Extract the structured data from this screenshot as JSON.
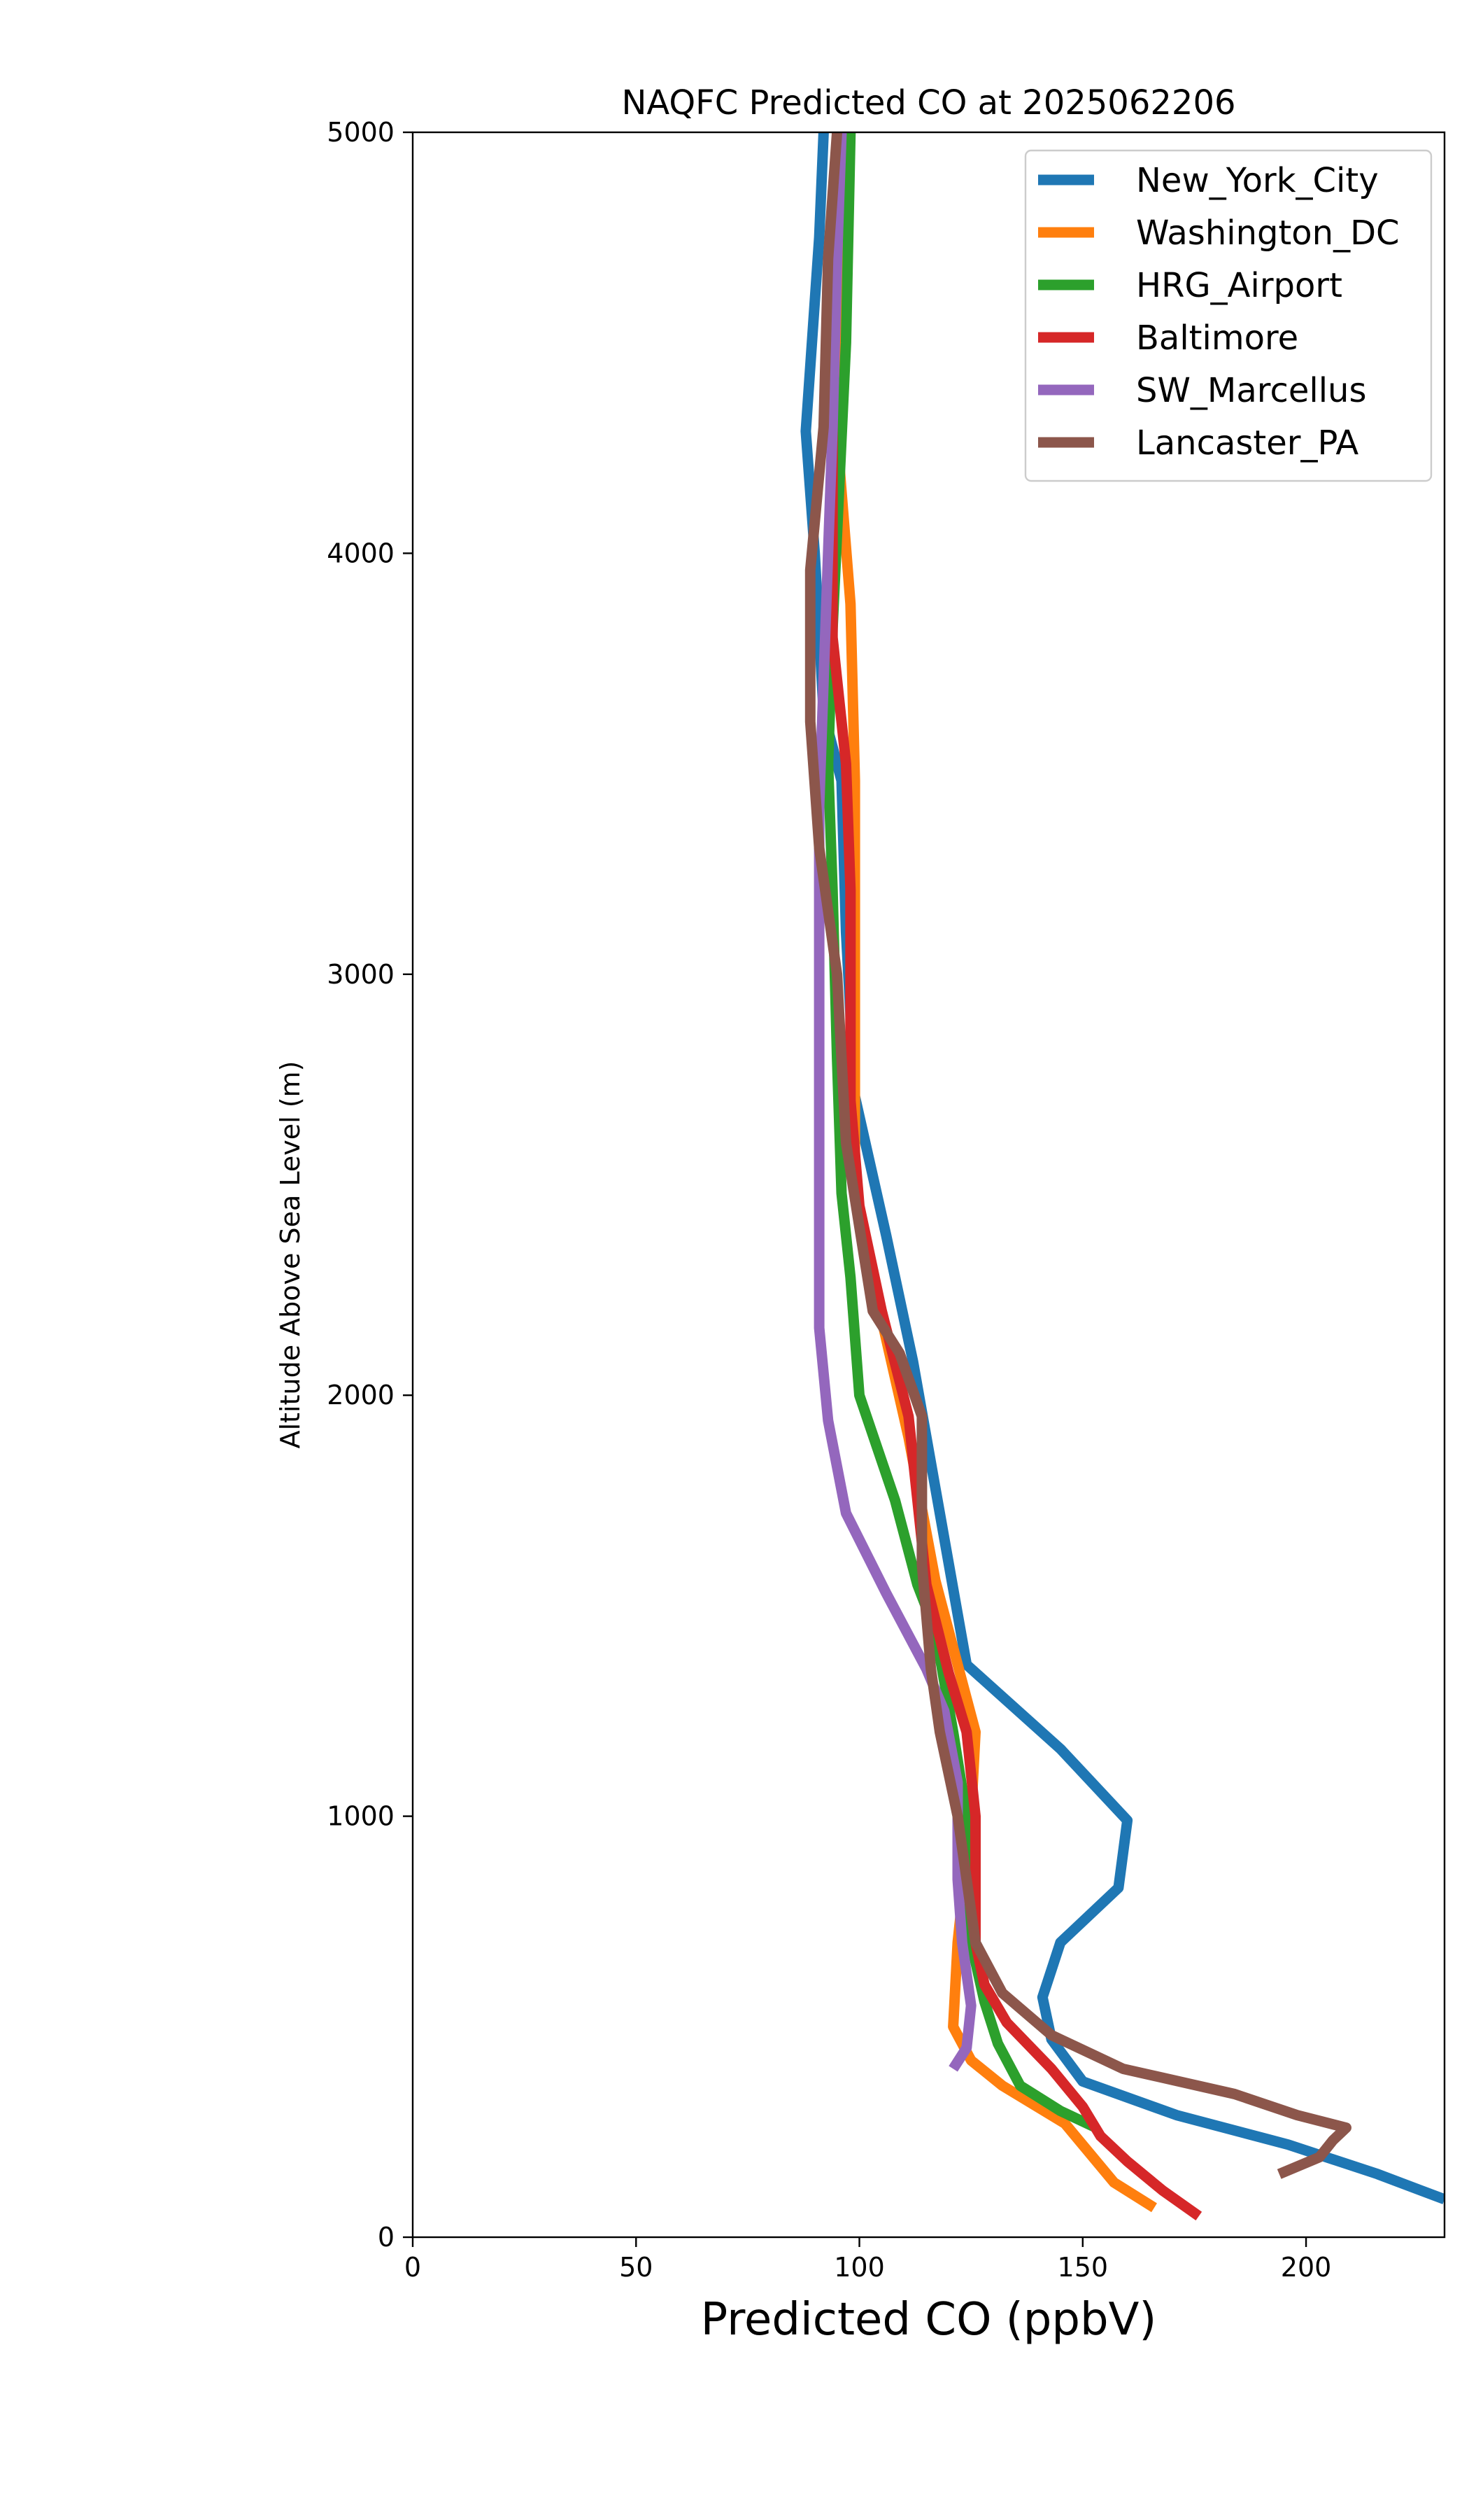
{
  "chart_data": {
    "type": "line",
    "title": "NAQFC Predicted CO at 2025062206",
    "xlabel": "Predicted CO (ppbV)",
    "ylabel": "Altitude Above Sea Level (m)",
    "xlim": [
      0,
      231
    ],
    "ylim": [
      0,
      5000
    ],
    "x_ticks": [
      0,
      50,
      100,
      150,
      200
    ],
    "y_ticks": [
      0,
      1000,
      2000,
      3000,
      4000,
      5000
    ],
    "grid": false,
    "legend_position": "top-right",
    "series": [
      {
        "name": "New_York_City",
        "color": "#1f77b4",
        "points": [
          [
            231,
            90
          ],
          [
            216,
            150
          ],
          [
            196,
            220
          ],
          [
            171,
            290
          ],
          [
            150,
            370
          ],
          [
            143,
            470
          ],
          [
            141,
            570
          ],
          [
            145,
            700
          ],
          [
            158,
            830
          ],
          [
            160,
            990
          ],
          [
            145,
            1160
          ],
          [
            124,
            1360
          ],
          [
            117,
            1780
          ],
          [
            112,
            2080
          ],
          [
            106,
            2380
          ],
          [
            99,
            2710
          ],
          [
            97,
            3100
          ],
          [
            96,
            3460
          ],
          [
            92,
            3620
          ],
          [
            90,
            4000
          ],
          [
            88,
            4290
          ],
          [
            91,
            4750
          ],
          [
            92,
            5000
          ]
        ]
      },
      {
        "name": "Washington_DC",
        "color": "#ff7f0e",
        "points": [
          [
            166,
            70
          ],
          [
            157,
            130
          ],
          [
            146,
            270
          ],
          [
            132,
            360
          ],
          [
            125,
            420
          ],
          [
            121,
            500
          ],
          [
            122,
            700
          ],
          [
            125,
            1000
          ],
          [
            126,
            1200
          ],
          [
            117,
            1560
          ],
          [
            111,
            1900
          ],
          [
            102,
            2320
          ],
          [
            99,
            2500
          ],
          [
            99,
            2900
          ],
          [
            99,
            3460
          ],
          [
            98,
            3880
          ],
          [
            95,
            4280
          ],
          [
            96,
            5000
          ]
        ]
      },
      {
        "name": "HRG_Airport",
        "color": "#2ca02c",
        "points": [
          [
            153,
            260
          ],
          [
            145,
            300
          ],
          [
            136,
            360
          ],
          [
            131,
            460
          ],
          [
            128,
            560
          ],
          [
            125,
            700
          ],
          [
            124,
            1000
          ],
          [
            121,
            1200
          ],
          [
            117,
            1440
          ],
          [
            113,
            1550
          ],
          [
            108,
            1750
          ],
          [
            100,
            2000
          ],
          [
            98,
            2280
          ],
          [
            96,
            2480
          ],
          [
            95,
            2800
          ],
          [
            94,
            3200
          ],
          [
            93,
            3500
          ],
          [
            94,
            3820
          ],
          [
            97,
            4500
          ],
          [
            98,
            5000
          ]
        ]
      },
      {
        "name": "Baltimore",
        "color": "#d62728",
        "points": [
          [
            176,
            50
          ],
          [
            168,
            110
          ],
          [
            160,
            180
          ],
          [
            154,
            240
          ],
          [
            150,
            310
          ],
          [
            143,
            400
          ],
          [
            133,
            510
          ],
          [
            128,
            600
          ],
          [
            126,
            700
          ],
          [
            126,
            800
          ],
          [
            126,
            1000
          ],
          [
            124,
            1200
          ],
          [
            120,
            1340
          ],
          [
            115,
            1550
          ],
          [
            111,
            1950
          ],
          [
            105,
            2200
          ],
          [
            100,
            2450
          ],
          [
            98,
            2700
          ],
          [
            98,
            3200
          ],
          [
            97,
            3500
          ],
          [
            94,
            3800
          ],
          [
            94,
            4300
          ],
          [
            95,
            5000
          ]
        ]
      },
      {
        "name": "SW_Marcellus",
        "color": "#9467bd",
        "points": [
          [
            121,
            400
          ],
          [
            124,
            450
          ],
          [
            125,
            550
          ],
          [
            123,
            700
          ],
          [
            122,
            850
          ],
          [
            122,
            1080
          ],
          [
            119,
            1250
          ],
          [
            115,
            1350
          ],
          [
            106,
            1530
          ],
          [
            97,
            1720
          ],
          [
            93,
            1940
          ],
          [
            91,
            2160
          ],
          [
            91,
            2500
          ],
          [
            91,
            3000
          ],
          [
            91,
            3400
          ],
          [
            92,
            3700
          ],
          [
            93,
            4000
          ],
          [
            94,
            4300
          ],
          [
            95,
            4700
          ],
          [
            96,
            5000
          ]
        ]
      },
      {
        "name": "Lancaster_PA",
        "color": "#8c564b",
        "points": [
          [
            194,
            150
          ],
          [
            203,
            190
          ],
          [
            206,
            230
          ],
          [
            209,
            260
          ],
          [
            198,
            290
          ],
          [
            184,
            340
          ],
          [
            159,
            400
          ],
          [
            143,
            480
          ],
          [
            132,
            580
          ],
          [
            126,
            700
          ],
          [
            124,
            850
          ],
          [
            122,
            1000
          ],
          [
            118,
            1200
          ],
          [
            116,
            1350
          ],
          [
            114,
            1600
          ],
          [
            114,
            1950
          ],
          [
            109,
            2100
          ],
          [
            103,
            2200
          ],
          [
            100,
            2400
          ],
          [
            97,
            2600
          ],
          [
            95,
            3000
          ],
          [
            91,
            3300
          ],
          [
            89,
            3600
          ],
          [
            89,
            3960
          ],
          [
            92,
            4300
          ],
          [
            93,
            4700
          ],
          [
            95,
            5000
          ]
        ]
      }
    ]
  }
}
